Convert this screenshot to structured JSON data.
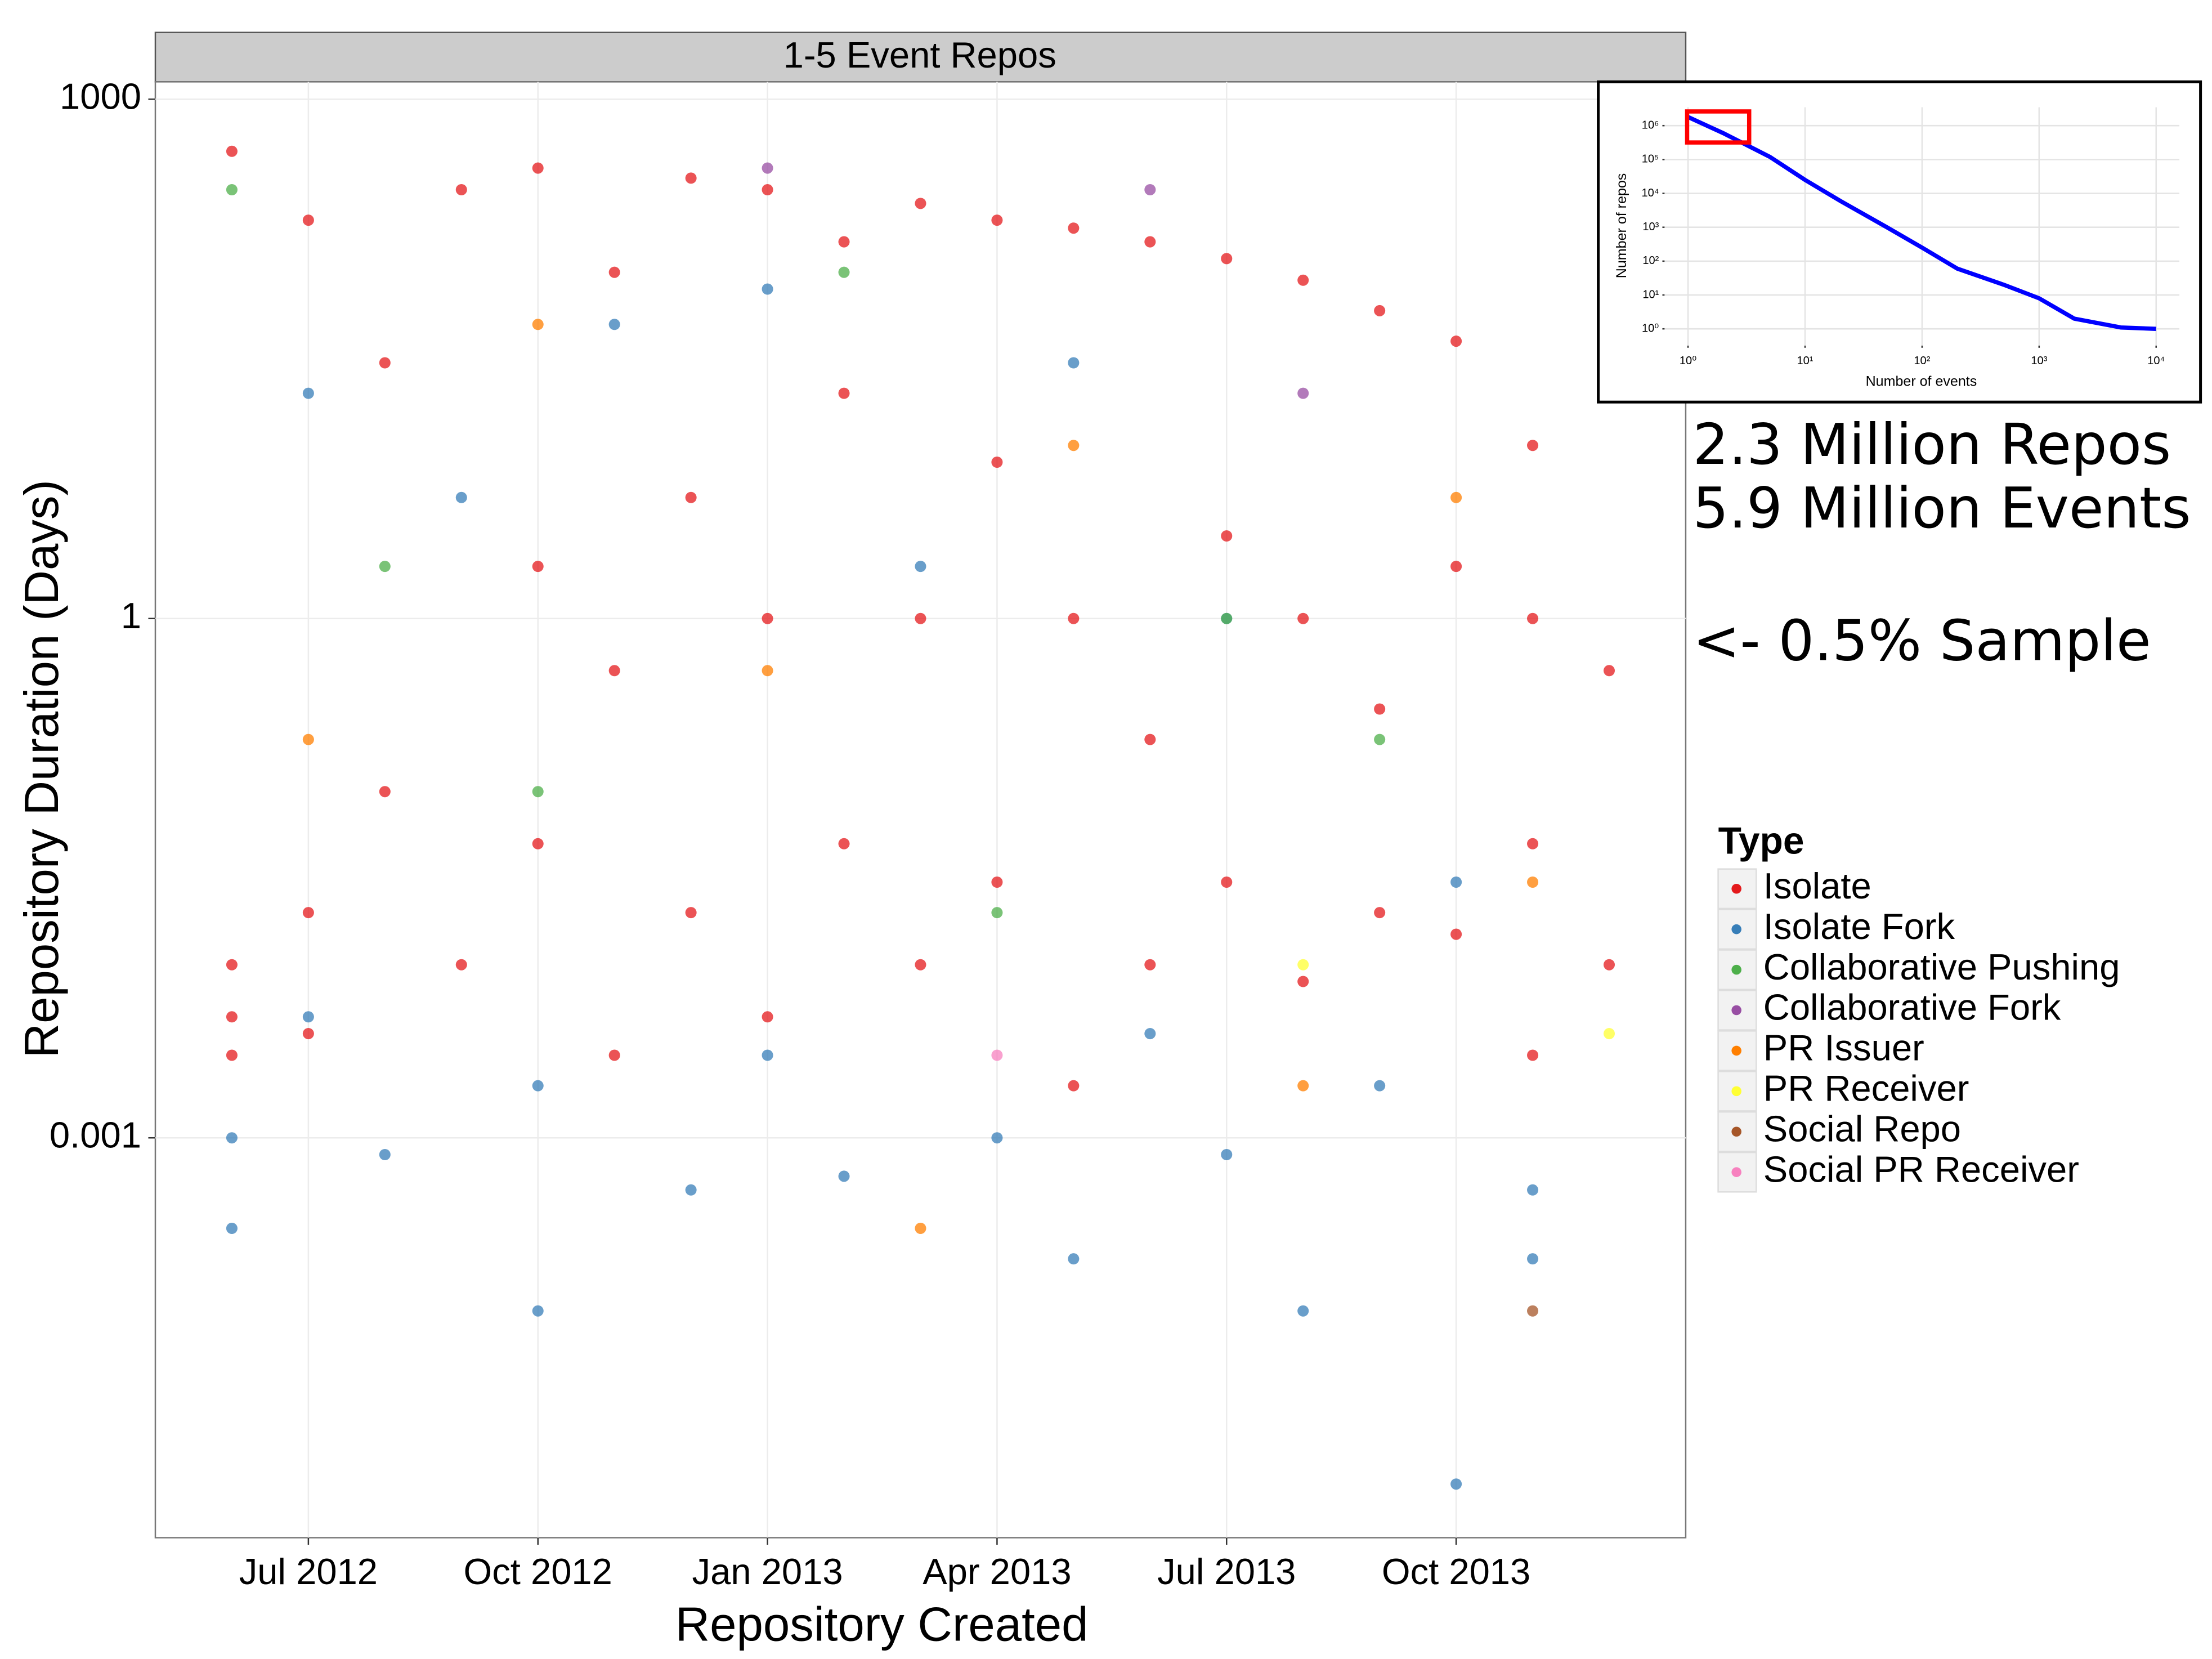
{
  "chart_data": [
    {
      "type": "scatter",
      "title": "1-5 Event Repos",
      "x_label": "Repository Created",
      "y_label": "Repository Duration (Days)",
      "xlim": [
        "2012-05",
        "2014-01"
      ],
      "xticks": [
        {
          "value": "2012-07",
          "label": "Jul 2012"
        },
        {
          "value": "2012-10",
          "label": "Oct 2012"
        },
        {
          "value": "2013-01",
          "label": "Jan 2013"
        },
        {
          "value": "2013-04",
          "label": "Apr 2013"
        },
        {
          "value": "2013-07",
          "label": "Jul 2013"
        },
        {
          "value": "2013-10",
          "label": "Oct 2013"
        }
      ],
      "ylim": [
        4.9e-06,
        1260
      ],
      "yticks": [
        0.001,
        1,
        1000
      ],
      "log_y": true,
      "grid": true,
      "legend": "right",
      "legend_title": "Type",
      "annotations": [
        "2.3 Million Repos",
        "5.9 Million Events",
        "<- 0.5% Sample"
      ],
      "series": [
        {
          "name": "Isolate",
          "color": "#e41a1c",
          "x": [
            "2012-06",
            "2012-06",
            "2012-06",
            "2012-06",
            "2012-07",
            "2012-07",
            "2012-07",
            "2012-08",
            "2012-08",
            "2012-09",
            "2012-09",
            "2012-10",
            "2012-10",
            "2012-10",
            "2012-11",
            "2012-11",
            "2012-11",
            "2012-12",
            "2012-12",
            "2012-12",
            "2013-01",
            "2013-01",
            "2013-01",
            "2013-02",
            "2013-02",
            "2013-02",
            "2013-03",
            "2013-03",
            "2013-03",
            "2013-04",
            "2013-04",
            "2013-04",
            "2013-05",
            "2013-05",
            "2013-05",
            "2013-06",
            "2013-06",
            "2013-06",
            "2013-07",
            "2013-07",
            "2013-07",
            "2013-08",
            "2013-08",
            "2013-08",
            "2013-09",
            "2013-09",
            "2013-09",
            "2013-10",
            "2013-10",
            "2013-10",
            "2013-11",
            "2013-11",
            "2013-11",
            "2013-11",
            "2013-12",
            "2013-12"
          ],
          "values": [
            500,
            0.01,
            0.003,
            0.005,
            200,
            0.004,
            0.02,
            30,
            0.1,
            300,
            0.01,
            400,
            2,
            0.05,
            100,
            0.5,
            0.003,
            350,
            5,
            0.02,
            300,
            1,
            0.005,
            150,
            20,
            0.05,
            250,
            1,
            0.01,
            200,
            8,
            0.03,
            180,
            1,
            0.002,
            150,
            0.2,
            0.01,
            120,
            3,
            0.03,
            90,
            1,
            0.008,
            60,
            0.3,
            0.02,
            40,
            2,
            0.015,
            10,
            1,
            0.05,
            0.003,
            0.5,
            0.01
          ]
        },
        {
          "name": "Isolate Fork",
          "color": "#377eb8",
          "x": [
            "2012-06",
            "2012-06",
            "2012-07",
            "2012-07",
            "2012-08",
            "2012-09",
            "2012-10",
            "2012-10",
            "2012-11",
            "2012-12",
            "2013-01",
            "2013-01",
            "2013-02",
            "2013-03",
            "2013-04",
            "2013-05",
            "2013-05",
            "2013-06",
            "2013-07",
            "2013-07",
            "2013-08",
            "2013-09",
            "2013-10",
            "2013-10",
            "2013-11",
            "2013-11"
          ],
          "values": [
            0.0003,
            0.001,
            0.005,
            20,
            0.0008,
            5,
            0.0001,
            0.002,
            50,
            0.0005,
            0.003,
            80,
            0.0006,
            2,
            0.001,
            0.0002,
            30,
            0.004,
            0.0008,
            1,
            0.0001,
            0.002,
            1e-05,
            0.03,
            0.0005,
            0.0002
          ]
        },
        {
          "name": "Collaborative Pushing",
          "color": "#4daf4a",
          "x": [
            "2012-06",
            "2012-08",
            "2012-10",
            "2013-02",
            "2013-04",
            "2013-07",
            "2013-09"
          ],
          "values": [
            300,
            2,
            0.1,
            100,
            0.02,
            1,
            0.2
          ]
        },
        {
          "name": "Collaborative Fork",
          "color": "#984ea3",
          "x": [
            "2013-01",
            "2013-06",
            "2013-08"
          ],
          "values": [
            400,
            300,
            20
          ]
        },
        {
          "name": "PR Issuer",
          "color": "#ff7f00",
          "x": [
            "2012-07",
            "2012-10",
            "2013-01",
            "2013-03",
            "2013-05",
            "2013-08",
            "2013-10",
            "2013-11"
          ],
          "values": [
            0.2,
            50,
            0.5,
            0.0003,
            10,
            0.002,
            5,
            0.03
          ]
        },
        {
          "name": "PR Receiver",
          "color": "#ffff33",
          "x": [
            "2013-08",
            "2013-12"
          ],
          "values": [
            0.01,
            0.004
          ]
        },
        {
          "name": "Social Repo",
          "color": "#a65628",
          "x": [
            "2013-11"
          ],
          "values": [
            0.0001
          ]
        },
        {
          "name": "Social PR Receiver",
          "color": "#f781bf",
          "x": [
            "2013-04"
          ],
          "values": [
            0.003
          ]
        }
      ]
    },
    {
      "type": "line",
      "x_label": "Number of events",
      "y_label": "Number of repos",
      "log_x": true,
      "log_y": true,
      "grid": true,
      "xlim": [
        0.63,
        15800
      ],
      "ylim": [
        0.32,
        3500000
      ],
      "xticks": [
        {
          "value": 1,
          "label": "10⁰"
        },
        {
          "value": 10,
          "label": "10¹"
        },
        {
          "value": 100,
          "label": "10²"
        },
        {
          "value": 1000,
          "label": "10³"
        },
        {
          "value": 10000,
          "label": "10⁴"
        }
      ],
      "yticks": [
        {
          "value": 1,
          "label": "10⁰"
        },
        {
          "value": 10,
          "label": "10¹"
        },
        {
          "value": 100,
          "label": "10²"
        },
        {
          "value": 1000,
          "label": "10³"
        },
        {
          "value": 10000,
          "label": "10⁴"
        },
        {
          "value": 100000,
          "label": "10⁵"
        },
        {
          "value": 1000000,
          "label": "10⁶"
        }
      ],
      "series": [
        {
          "color": "#0000ff",
          "x": [
            1,
            2,
            5,
            10,
            20,
            50,
            100,
            200,
            500,
            1000,
            2000,
            5000,
            10000
          ],
          "values": [
            1800000,
            600000,
            120000,
            25000,
            6000,
            1000,
            250,
            60,
            20,
            8,
            2,
            1.1,
            1
          ]
        }
      ]
    }
  ]
}
